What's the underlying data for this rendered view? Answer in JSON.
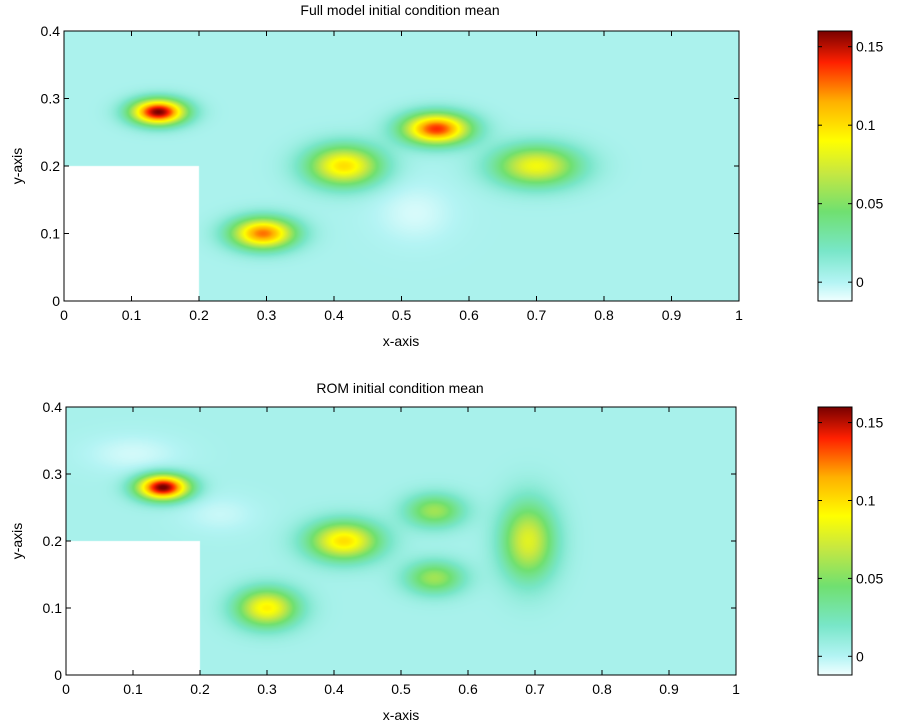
{
  "colormap": {
    "stops": [
      {
        "v": -0.012,
        "c": "#f0ffff"
      },
      {
        "v": 0.0,
        "c": "#b4f4f4"
      },
      {
        "v": 0.02,
        "c": "#78e6c8"
      },
      {
        "v": 0.045,
        "c": "#70e070"
      },
      {
        "v": 0.07,
        "c": "#c8e840"
      },
      {
        "v": 0.09,
        "c": "#ffff00"
      },
      {
        "v": 0.115,
        "c": "#ffb000"
      },
      {
        "v": 0.14,
        "c": "#ff2000"
      },
      {
        "v": 0.16,
        "c": "#780000"
      }
    ]
  },
  "chart_data": [
    {
      "type": "heatmap",
      "title": "Full model initial condition mean",
      "xlabel": "x-axis",
      "ylabel": "y-axis",
      "xlim": [
        0,
        1
      ],
      "ylim": [
        0,
        0.4
      ],
      "x_ticks": [
        0,
        0.1,
        0.2,
        0.3,
        0.4,
        0.5,
        0.6,
        0.7,
        0.8,
        0.9,
        1
      ],
      "y_ticks": [
        0,
        0.1,
        0.2,
        0.3,
        0.4
      ],
      "colorbar": {
        "range": [
          -0.012,
          0.16
        ],
        "ticks": [
          0,
          0.05,
          0.1,
          0.15
        ]
      },
      "background_value": 0.003,
      "masked_region": {
        "x": [
          0,
          0.2
        ],
        "y": [
          0,
          0.2
        ]
      },
      "blobs": [
        {
          "x": 0.14,
          "y": 0.28,
          "amp": 0.157,
          "sx": 0.028,
          "sy": 0.013
        },
        {
          "x": 0.295,
          "y": 0.1,
          "amp": 0.123,
          "sx": 0.033,
          "sy": 0.016
        },
        {
          "x": 0.415,
          "y": 0.2,
          "amp": 0.097,
          "sx": 0.038,
          "sy": 0.021
        },
        {
          "x": 0.552,
          "y": 0.255,
          "amp": 0.135,
          "sx": 0.035,
          "sy": 0.016
        },
        {
          "x": 0.7,
          "y": 0.2,
          "amp": 0.083,
          "sx": 0.044,
          "sy": 0.021
        },
        {
          "x": 0.52,
          "y": 0.13,
          "amp": -0.01,
          "sx": 0.04,
          "sy": 0.03
        }
      ]
    },
    {
      "type": "heatmap",
      "title": "ROM initial condition mean",
      "xlabel": "x-axis",
      "ylabel": "y-axis",
      "xlim": [
        0,
        1
      ],
      "ylim": [
        0,
        0.4
      ],
      "x_ticks": [
        0,
        0.1,
        0.2,
        0.3,
        0.4,
        0.5,
        0.6,
        0.7,
        0.8,
        0.9,
        1
      ],
      "y_ticks": [
        0,
        0.1,
        0.2,
        0.3,
        0.4
      ],
      "colorbar": {
        "range": [
          -0.012,
          0.16
        ],
        "ticks": [
          0,
          0.05,
          0.1,
          0.15
        ]
      },
      "background_value": 0.004,
      "masked_region": {
        "x": [
          0,
          0.2
        ],
        "y": [
          0,
          0.2
        ]
      },
      "blobs": [
        {
          "x": 0.145,
          "y": 0.28,
          "amp": 0.158,
          "sx": 0.027,
          "sy": 0.013
        },
        {
          "x": 0.3,
          "y": 0.1,
          "amp": 0.09,
          "sx": 0.032,
          "sy": 0.02
        },
        {
          "x": 0.415,
          "y": 0.2,
          "amp": 0.096,
          "sx": 0.037,
          "sy": 0.02
        },
        {
          "x": 0.55,
          "y": 0.245,
          "amp": 0.055,
          "sx": 0.03,
          "sy": 0.017
        },
        {
          "x": 0.55,
          "y": 0.145,
          "amp": 0.055,
          "sx": 0.03,
          "sy": 0.017
        },
        {
          "x": 0.69,
          "y": 0.2,
          "amp": 0.075,
          "sx": 0.028,
          "sy": 0.04
        },
        {
          "x": 0.1,
          "y": 0.33,
          "amp": -0.01,
          "sx": 0.05,
          "sy": 0.02
        },
        {
          "x": 0.23,
          "y": 0.24,
          "amp": -0.008,
          "sx": 0.04,
          "sy": 0.02
        }
      ]
    }
  ]
}
